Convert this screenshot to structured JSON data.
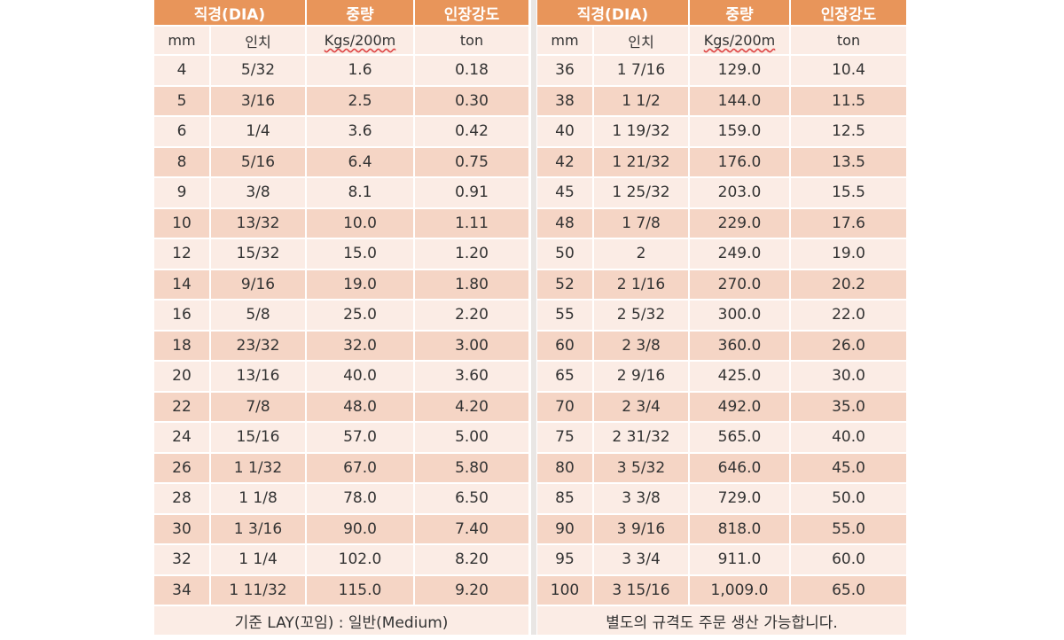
{
  "headers": [
    "직경(DIA)",
    "중량",
    "인장강도"
  ],
  "units": {
    "mm": "mm",
    "inch": "인치",
    "weight": "Kgs/200m",
    "strength": "ton"
  },
  "left_rows": [
    {
      "mm": "4",
      "inch": "5/32",
      "weight": "1.6",
      "ton": "0.18"
    },
    {
      "mm": "5",
      "inch": "3/16",
      "weight": "2.5",
      "ton": "0.30"
    },
    {
      "mm": "6",
      "inch": "1/4",
      "weight": "3.6",
      "ton": "0.42"
    },
    {
      "mm": "8",
      "inch": "5/16",
      "weight": "6.4",
      "ton": "0.75"
    },
    {
      "mm": "9",
      "inch": "3/8",
      "weight": "8.1",
      "ton": "0.91"
    },
    {
      "mm": "10",
      "inch": "13/32",
      "weight": "10.0",
      "ton": "1.11"
    },
    {
      "mm": "12",
      "inch": "15/32",
      "weight": "15.0",
      "ton": "1.20"
    },
    {
      "mm": "14",
      "inch": "9/16",
      "weight": "19.0",
      "ton": "1.80"
    },
    {
      "mm": "16",
      "inch": "5/8",
      "weight": "25.0",
      "ton": "2.20"
    },
    {
      "mm": "18",
      "inch": "23/32",
      "weight": "32.0",
      "ton": "3.00"
    },
    {
      "mm": "20",
      "inch": "13/16",
      "weight": "40.0",
      "ton": "3.60"
    },
    {
      "mm": "22",
      "inch": "7/8",
      "weight": "48.0",
      "ton": "4.20"
    },
    {
      "mm": "24",
      "inch": "15/16",
      "weight": "57.0",
      "ton": "5.00"
    },
    {
      "mm": "26",
      "inch": "1 1/32",
      "weight": "67.0",
      "ton": "5.80"
    },
    {
      "mm": "28",
      "inch": "1 1/8",
      "weight": "78.0",
      "ton": "6.50"
    },
    {
      "mm": "30",
      "inch": "1 3/16",
      "weight": "90.0",
      "ton": "7.40"
    },
    {
      "mm": "32",
      "inch": "1 1/4",
      "weight": "102.0",
      "ton": "8.20"
    },
    {
      "mm": "34",
      "inch": "1 11/32",
      "weight": "115.0",
      "ton": "9.20"
    }
  ],
  "right_rows": [
    {
      "mm": "36",
      "inch": "1 7/16",
      "weight": "129.0",
      "ton": "10.4"
    },
    {
      "mm": "38",
      "inch": "1 1/2",
      "weight": "144.0",
      "ton": "11.5"
    },
    {
      "mm": "40",
      "inch": "1 19/32",
      "weight": "159.0",
      "ton": "12.5"
    },
    {
      "mm": "42",
      "inch": "1 21/32",
      "weight": "176.0",
      "ton": "13.5"
    },
    {
      "mm": "45",
      "inch": "1 25/32",
      "weight": "203.0",
      "ton": "15.5"
    },
    {
      "mm": "48",
      "inch": "1 7/8",
      "weight": "229.0",
      "ton": "17.6"
    },
    {
      "mm": "50",
      "inch": "2",
      "weight": "249.0",
      "ton": "19.0"
    },
    {
      "mm": "52",
      "inch": "2 1/16",
      "weight": "270.0",
      "ton": "20.2"
    },
    {
      "mm": "55",
      "inch": "2 5/32",
      "weight": "300.0",
      "ton": "22.0"
    },
    {
      "mm": "60",
      "inch": "2 3/8",
      "weight": "360.0",
      "ton": "26.0"
    },
    {
      "mm": "65",
      "inch": "2 9/16",
      "weight": "425.0",
      "ton": "30.0"
    },
    {
      "mm": "70",
      "inch": "2 3/4",
      "weight": "492.0",
      "ton": "35.0"
    },
    {
      "mm": "75",
      "inch": "2 31/32",
      "weight": "565.0",
      "ton": "40.0"
    },
    {
      "mm": "80",
      "inch": "3 5/32",
      "weight": "646.0",
      "ton": "45.0"
    },
    {
      "mm": "85",
      "inch": "3 3/8",
      "weight": "729.0",
      "ton": "50.0"
    },
    {
      "mm": "90",
      "inch": "3 9/16",
      "weight": "818.0",
      "ton": "55.0"
    },
    {
      "mm": "95",
      "inch": "3 3/4",
      "weight": "911.0",
      "ton": "60.0"
    },
    {
      "mm": "100",
      "inch": "3 15/16",
      "weight": "1,009.0",
      "ton": "65.0"
    }
  ],
  "footer": {
    "left": "기준 LAY(꼬임) : 일반(Medium)",
    "right": "별도의 규격도 주문 생산 가능합니다."
  },
  "colors": {
    "header_bg": "#e8955a",
    "row_light": "#fbece5",
    "row_dark": "#f5d5c5"
  }
}
